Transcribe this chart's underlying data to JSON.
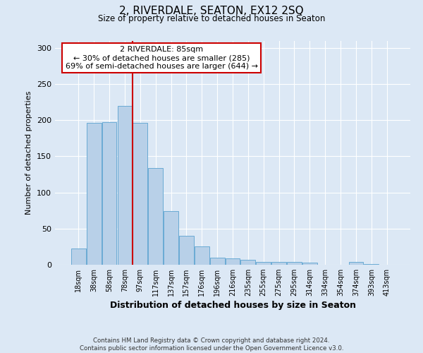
{
  "title": "2, RIVERDALE, SEATON, EX12 2SQ",
  "subtitle": "Size of property relative to detached houses in Seaton",
  "xlabel": "Distribution of detached houses by size in Seaton",
  "ylabel": "Number of detached properties",
  "bar_labels": [
    "18sqm",
    "38sqm",
    "58sqm",
    "78sqm",
    "97sqm",
    "117sqm",
    "137sqm",
    "157sqm",
    "176sqm",
    "196sqm",
    "216sqm",
    "235sqm",
    "255sqm",
    "275sqm",
    "295sqm",
    "314sqm",
    "334sqm",
    "354sqm",
    "374sqm",
    "393sqm",
    "413sqm"
  ],
  "bar_values": [
    22,
    196,
    197,
    220,
    196,
    134,
    74,
    40,
    25,
    10,
    9,
    7,
    4,
    4,
    4,
    3,
    0,
    0,
    4,
    1,
    0
  ],
  "bar_color": "#b8d0e8",
  "bar_edge_color": "#6aaad4",
  "property_line_x": 3.5,
  "annotation_text": "2 RIVERDALE: 85sqm\n← 30% of detached houses are smaller (285)\n69% of semi-detached houses are larger (644) →",
  "annotation_box_color": "#ffffff",
  "annotation_box_edge_color": "#cc0000",
  "line_color": "#cc0000",
  "footer_text": "Contains HM Land Registry data © Crown copyright and database right 2024.\nContains public sector information licensed under the Open Government Licence v3.0.",
  "background_color": "#dce8f5",
  "plot_background_color": "#dce8f5",
  "ylim": [
    0,
    310
  ],
  "yticks": [
    0,
    50,
    100,
    150,
    200,
    250,
    300
  ]
}
